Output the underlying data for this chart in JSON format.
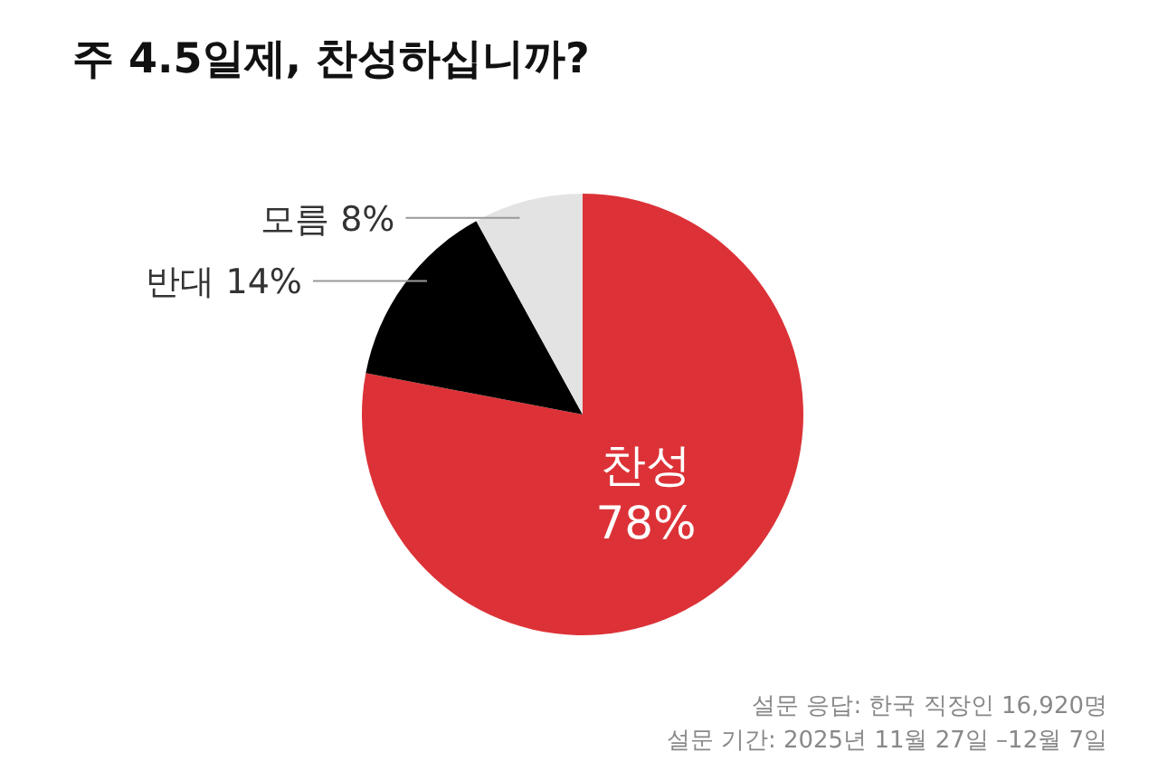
{
  "chart_data": {
    "type": "pie",
    "title": "주 4.5일제, 찬성하십니까?",
    "categories": [
      "찬성",
      "반대",
      "모름"
    ],
    "values": [
      78,
      14,
      8
    ],
    "colors": [
      "#dc3237",
      "#000000",
      "#e3e3e3"
    ],
    "value_labels": [
      "78%",
      "14%",
      "8%"
    ],
    "annotations": [
      "설문 응답: 한국 직장인 16,920명",
      "설문 기간: 2025년 11월 27일 –12월 7일"
    ]
  }
}
